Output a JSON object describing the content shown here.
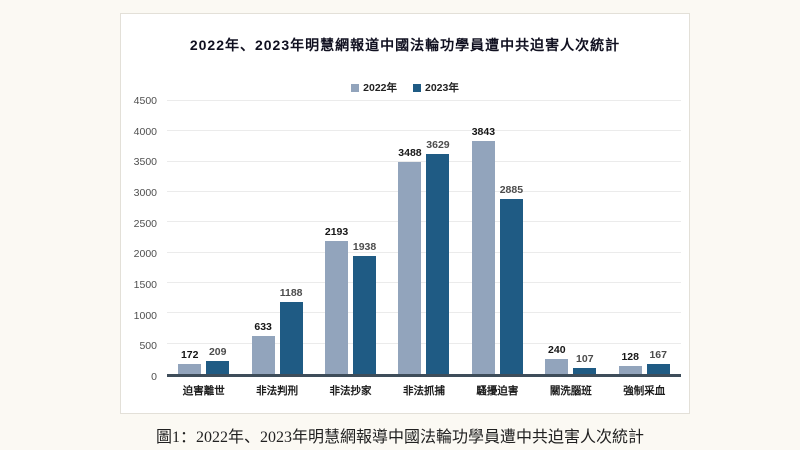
{
  "figure": {
    "caption": "圖1：2022年、2023年明慧網報導中國法輪功學員遭中共迫害人次統計",
    "colors": {
      "page_background": "#fbf9f3",
      "panel_background": "#ffffff",
      "axis_line": "#3e4d5a",
      "gridline": "#ebebeb"
    }
  },
  "chart_data": {
    "type": "bar",
    "title": "2022年、2023年明慧網報道中國法輪功學員遭中共迫害人次統計",
    "categories": [
      "迫害離世",
      "非法判刑",
      "非法抄家",
      "非法抓捕",
      "騷擾迫害",
      "關洗腦班",
      "強制采血"
    ],
    "series": [
      {
        "name": "2022年",
        "color": "#92a4bc",
        "values": [
          172,
          633,
          2193,
          3488,
          3843,
          240,
          128
        ]
      },
      {
        "name": "2023年",
        "color": "#1f5b84",
        "values": [
          209,
          1188,
          1938,
          3629,
          2885,
          107,
          167
        ]
      }
    ],
    "ylabel": "",
    "xlabel": "",
    "ylim": [
      0,
      4500
    ],
    "ytick_step": 500,
    "grid": true,
    "legend_position": "top"
  }
}
